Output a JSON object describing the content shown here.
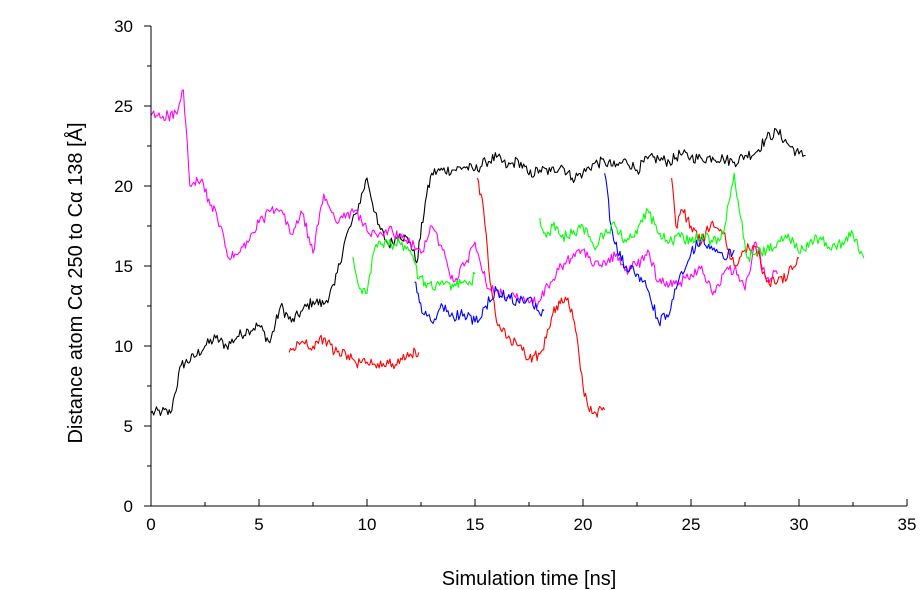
{
  "chart_data": {
    "type": "line",
    "title": "",
    "xlabel": "Simulation time [ns]",
    "ylabel": "Distance atom Cα 250 to Cα 138 [Å]",
    "xlim": [
      0,
      35
    ],
    "ylim": [
      0,
      30
    ],
    "xticks": [
      "0",
      "5",
      "10",
      "15",
      "20",
      "25",
      "30",
      "35"
    ],
    "yticks": [
      "0",
      "5",
      "10",
      "15",
      "20",
      "25",
      "30"
    ],
    "grid": false,
    "legend": "none",
    "series": [
      {
        "color": "#000000",
        "x": [
          0,
          0.5,
          0.9,
          1.1,
          1.4,
          2.0,
          2.5,
          3.0,
          3.5,
          4.0,
          4.5,
          5.0,
          5.5,
          6.0,
          6.5,
          7.0,
          7.5,
          8.0,
          8.5,
          9.0,
          9.5,
          10.0,
          10.5,
          11.0,
          11.5,
          12.0,
          12.3,
          12.7,
          13.0,
          13.5,
          14.0,
          14.5,
          15.0,
          15.5,
          16.0,
          16.5,
          17.0,
          17.5,
          18.0,
          18.5,
          19.0,
          19.5,
          20.0,
          20.5,
          21.0,
          21.5,
          22.0,
          22.5,
          23.0,
          23.5,
          24.0,
          24.5,
          25.0,
          25.5,
          26.0,
          26.5,
          27.0,
          27.5,
          28.0,
          28.5,
          29.0,
          29.5,
          30.0,
          30.3
        ],
        "y": [
          5.8,
          5.9,
          5.8,
          7.0,
          8.8,
          9.3,
          10.0,
          10.5,
          10.0,
          10.6,
          11.0,
          11.3,
          10.2,
          12.5,
          11.5,
          12.2,
          12.8,
          12.6,
          13.8,
          16.7,
          18.3,
          20.5,
          17.6,
          16.3,
          17.0,
          16.5,
          15.2,
          19.0,
          20.8,
          21.0,
          21.0,
          21.2,
          21.0,
          21.5,
          21.8,
          21.2,
          21.6,
          20.7,
          21.0,
          20.9,
          21.3,
          20.5,
          20.8,
          21.4,
          21.5,
          21.2,
          21.6,
          21.0,
          21.7,
          21.7,
          21.5,
          22.0,
          21.8,
          21.7,
          21.8,
          21.7,
          21.5,
          21.9,
          22.1,
          23.0,
          23.4,
          22.6,
          22.0,
          21.9
        ]
      },
      {
        "color": "#ff00ff",
        "x": [
          0,
          0.8,
          1.2,
          1.5,
          1.8,
          2.3,
          2.8,
          3.2,
          3.6,
          4.0,
          4.5,
          5.0,
          5.5,
          6.0,
          6.5,
          7.0,
          7.5,
          8.0,
          8.5,
          9.0,
          9.5,
          10.0,
          10.5,
          11.0,
          11.5,
          12.0,
          12.5,
          13.0,
          13.5,
          14.0,
          14.5,
          15.0,
          15.5,
          16.0,
          16.5,
          17.0,
          17.5,
          18.0,
          18.5,
          19.0,
          19.5,
          20.0,
          20.5,
          21.0,
          21.5,
          22.0,
          22.5,
          23.0,
          23.5,
          24.0,
          24.5,
          25.0,
          25.5,
          26.0,
          26.5,
          27.0,
          27.5,
          28.0,
          28.5,
          29.0
        ],
        "y": [
          24.4,
          24.4,
          24.5,
          26.0,
          20.0,
          20.3,
          18.8,
          17.5,
          15.5,
          15.7,
          16.5,
          17.7,
          18.4,
          18.5,
          17.0,
          18.3,
          15.8,
          19.5,
          18.0,
          18.0,
          18.5,
          17.2,
          16.8,
          17.3,
          16.8,
          16.4,
          15.8,
          17.5,
          16.0,
          14.0,
          15.0,
          16.5,
          14.0,
          13.5,
          13.0,
          13.0,
          12.7,
          12.8,
          14.0,
          15.0,
          15.5,
          16.0,
          15.0,
          15.3,
          15.6,
          14.8,
          15.0,
          16.0,
          14.0,
          13.8,
          14.0,
          14.5,
          15.0,
          13.2,
          14.5,
          14.8,
          13.5,
          16.5,
          14.2,
          14.5
        ]
      },
      {
        "color": "#ff0000",
        "x": [
          6.4,
          7.0,
          7.5,
          8.0,
          8.5,
          9.0,
          9.5,
          10.0,
          10.5,
          11.0,
          11.5,
          12.0,
          12.4
        ],
        "y": [
          9.6,
          10.3,
          10.0,
          10.5,
          9.6,
          9.6,
          8.9,
          9.0,
          8.9,
          8.9,
          8.9,
          9.5,
          9.6
        ]
      },
      {
        "color": "#ff0000",
        "x": [
          15.1,
          15.4,
          15.7,
          16.0,
          16.5,
          17.0,
          17.5,
          18.0,
          18.3,
          18.6,
          19.0,
          19.3,
          19.6,
          20.0,
          20.3,
          20.6,
          21.0
        ],
        "y": [
          20.5,
          18.5,
          14.0,
          11.5,
          10.5,
          10.0,
          9.2,
          9.5,
          10.5,
          12.0,
          13.0,
          13.0,
          11.5,
          7.5,
          5.9,
          5.8,
          6.0
        ]
      },
      {
        "color": "#ff0000",
        "x": [
          24.1,
          24.3,
          24.6,
          25.0,
          25.5,
          26.0,
          26.5,
          27.0,
          27.5,
          28.0,
          28.5,
          29.0,
          29.5,
          30.0
        ],
        "y": [
          20.5,
          17.5,
          18.5,
          17.5,
          16.5,
          17.8,
          17.0,
          15.0,
          16.0,
          16.2,
          14.0,
          14.0,
          14.5,
          15.5
        ]
      },
      {
        "color": "#0000ff",
        "x": [
          12.2,
          12.6,
          13.0,
          13.5,
          14.0,
          14.5,
          15.0,
          15.5,
          16.0,
          16.5,
          17.0,
          17.5,
          18.0,
          18.2
        ],
        "y": [
          14.0,
          12.0,
          11.5,
          12.5,
          11.8,
          12.0,
          11.5,
          12.5,
          13.5,
          13.0,
          12.8,
          13.0,
          12.0,
          12.2
        ]
      },
      {
        "color": "#0000ff",
        "x": [
          21.0,
          21.3,
          21.6,
          22.0,
          22.5,
          23.0,
          23.5,
          24.0,
          24.5,
          25.0,
          25.5,
          26.0,
          26.5,
          27.0
        ],
        "y": [
          20.8,
          17.5,
          15.8,
          15.0,
          14.5,
          13.5,
          11.5,
          12.0,
          14.5,
          15.8,
          16.8,
          16.0,
          15.5,
          16.0
        ]
      },
      {
        "color": "#00ff00",
        "x": [
          9.3,
          9.6,
          10.0,
          10.3,
          10.6,
          11.0,
          11.5,
          12.0,
          12.4,
          12.8,
          13.2,
          13.6,
          14.0,
          14.4,
          14.8,
          15.0
        ],
        "y": [
          15.5,
          13.8,
          13.3,
          15.8,
          16.5,
          16.3,
          16.5,
          16.0,
          14.2,
          13.9,
          13.8,
          13.9,
          13.7,
          14.0,
          13.9,
          14.5
        ]
      },
      {
        "color": "#00ff00",
        "x": [
          18.0,
          18.3,
          18.6,
          19.0,
          19.5,
          20.0,
          20.5,
          21.0,
          21.5,
          22.0,
          22.5,
          23.0,
          23.5,
          24.0,
          24.5,
          25.0,
          25.5,
          26.0,
          26.5,
          27.0,
          27.3,
          27.6,
          28.0,
          28.5,
          29.0,
          29.5,
          30.0,
          30.5,
          31.0,
          31.5,
          32.0,
          32.5,
          33.0
        ],
        "y": [
          18.0,
          16.8,
          17.5,
          16.8,
          17.0,
          17.5,
          16.2,
          17.0,
          17.5,
          16.5,
          17.0,
          18.5,
          17.0,
          16.5,
          16.8,
          16.5,
          17.0,
          16.5,
          17.0,
          20.8,
          18.0,
          15.5,
          15.8,
          16.0,
          16.5,
          17.0,
          15.8,
          16.5,
          16.8,
          16.0,
          16.5,
          17.0,
          15.5
        ]
      }
    ]
  }
}
